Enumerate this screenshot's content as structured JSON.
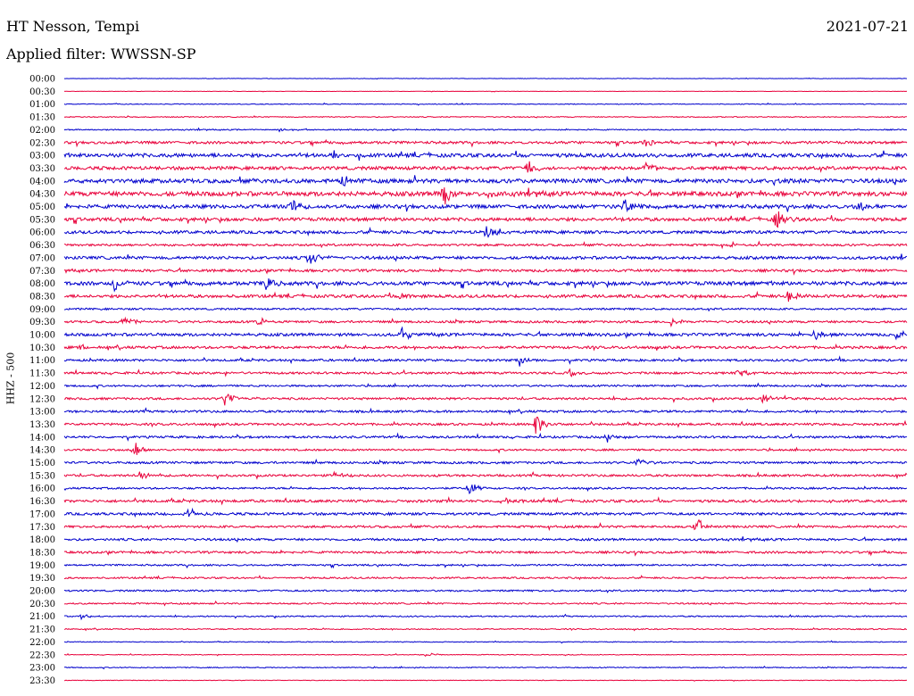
{
  "header": {
    "station": "HT Nesson, Tempi",
    "date": "2021-07-21",
    "filter": "Applied filter: WWSSN-SP"
  },
  "chart_data": {
    "type": "line",
    "title": "HT Nesson, Tempi",
    "ylabel": "HHZ - 500",
    "colors": [
      "#0000cc",
      "#e8003a"
    ],
    "line_labels": [
      "00:00",
      "00:30",
      "01:00",
      "01:30",
      "02:00",
      "02:30",
      "03:00",
      "03:30",
      "04:00",
      "04:30",
      "05:00",
      "05:30",
      "06:00",
      "06:30",
      "07:00",
      "07:30",
      "08:00",
      "08:30",
      "09:00",
      "09:30",
      "10:00",
      "10:30",
      "11:00",
      "11:30",
      "12:00",
      "12:30",
      "13:00",
      "13:30",
      "14:00",
      "14:30",
      "15:00",
      "15:30",
      "16:00",
      "16:30",
      "17:00",
      "17:30",
      "18:00",
      "18:30",
      "19:00",
      "19:30",
      "20:00",
      "20:30",
      "21:00",
      "21:30",
      "22:00",
      "22:30",
      "23:00",
      "23:30"
    ],
    "noise_level": [
      0.2,
      0.2,
      0.4,
      0.5,
      0.6,
      1.4,
      2.0,
      1.8,
      2.2,
      2.4,
      2.0,
      1.8,
      1.6,
      1.2,
      1.6,
      1.4,
      2.0,
      1.6,
      1.0,
      1.2,
      1.6,
      1.4,
      1.2,
      1.2,
      1.0,
      1.2,
      1.2,
      1.2,
      1.2,
      1.0,
      1.2,
      1.2,
      1.0,
      1.4,
      1.4,
      1.2,
      1.2,
      1.2,
      0.9,
      0.9,
      0.9,
      0.8,
      0.7,
      0.6,
      0.4,
      0.4,
      0.5,
      0.3
    ],
    "events": [
      {
        "line": "02:00",
        "t": 0.255,
        "amp": 3
      },
      {
        "line": "02:30",
        "t": 0.69,
        "amp": 7
      },
      {
        "line": "03:00",
        "t": 0.32,
        "amp": 5
      },
      {
        "line": "03:00",
        "t": 0.7,
        "amp": 4
      },
      {
        "line": "03:30",
        "t": 0.55,
        "amp": 9
      },
      {
        "line": "03:30",
        "t": 0.69,
        "amp": 11
      },
      {
        "line": "04:00",
        "t": 0.33,
        "amp": 9
      },
      {
        "line": "04:00",
        "t": 0.84,
        "amp": 5
      },
      {
        "line": "04:30",
        "t": 0.45,
        "amp": 13
      },
      {
        "line": "04:30",
        "t": 0.5,
        "amp": 4
      },
      {
        "line": "05:00",
        "t": 0.27,
        "amp": 9
      },
      {
        "line": "05:00",
        "t": 0.665,
        "amp": 10
      },
      {
        "line": "05:00",
        "t": 0.94,
        "amp": 8
      },
      {
        "line": "05:30",
        "t": 0.845,
        "amp": 12
      },
      {
        "line": "06:00",
        "t": 0.5,
        "amp": 9
      },
      {
        "line": "06:30",
        "t": 0.79,
        "amp": 4
      },
      {
        "line": "07:00",
        "t": 0.29,
        "amp": 10
      },
      {
        "line": "08:00",
        "t": 0.06,
        "amp": 9
      },
      {
        "line": "08:00",
        "t": 0.24,
        "amp": 11
      },
      {
        "line": "08:30",
        "t": 0.4,
        "amp": 4
      },
      {
        "line": "08:30",
        "t": 0.86,
        "amp": 7
      },
      {
        "line": "09:30",
        "t": 0.07,
        "amp": 7
      },
      {
        "line": "09:30",
        "t": 0.23,
        "amp": 7
      },
      {
        "line": "09:30",
        "t": 0.72,
        "amp": 5
      },
      {
        "line": "10:00",
        "t": 0.4,
        "amp": 9
      },
      {
        "line": "10:00",
        "t": 0.89,
        "amp": 7
      },
      {
        "line": "10:00",
        "t": 0.985,
        "amp": 8
      },
      {
        "line": "10:30",
        "t": 0.02,
        "amp": 5
      },
      {
        "line": "11:00",
        "t": 0.54,
        "amp": 8
      },
      {
        "line": "11:30",
        "t": 0.6,
        "amp": 5
      },
      {
        "line": "11:30",
        "t": 0.8,
        "amp": 5
      },
      {
        "line": "12:30",
        "t": 0.19,
        "amp": 9
      },
      {
        "line": "12:30",
        "t": 0.83,
        "amp": 7
      },
      {
        "line": "13:30",
        "t": 0.56,
        "amp": 14
      },
      {
        "line": "14:00",
        "t": 0.645,
        "amp": 8
      },
      {
        "line": "14:30",
        "t": 0.085,
        "amp": 8
      },
      {
        "line": "15:00",
        "t": 0.68,
        "amp": 6
      },
      {
        "line": "15:30",
        "t": 0.09,
        "amp": 8
      },
      {
        "line": "15:30",
        "t": 0.32,
        "amp": 5
      },
      {
        "line": "16:00",
        "t": 0.48,
        "amp": 10
      },
      {
        "line": "16:30",
        "t": 0.52,
        "amp": 7
      },
      {
        "line": "17:00",
        "t": 0.145,
        "amp": 6
      },
      {
        "line": "17:30",
        "t": 0.75,
        "amp": 11
      },
      {
        "line": "21:00",
        "t": 0.02,
        "amp": 3
      },
      {
        "line": "22:30",
        "t": 0.43,
        "amp": 3
      }
    ]
  }
}
